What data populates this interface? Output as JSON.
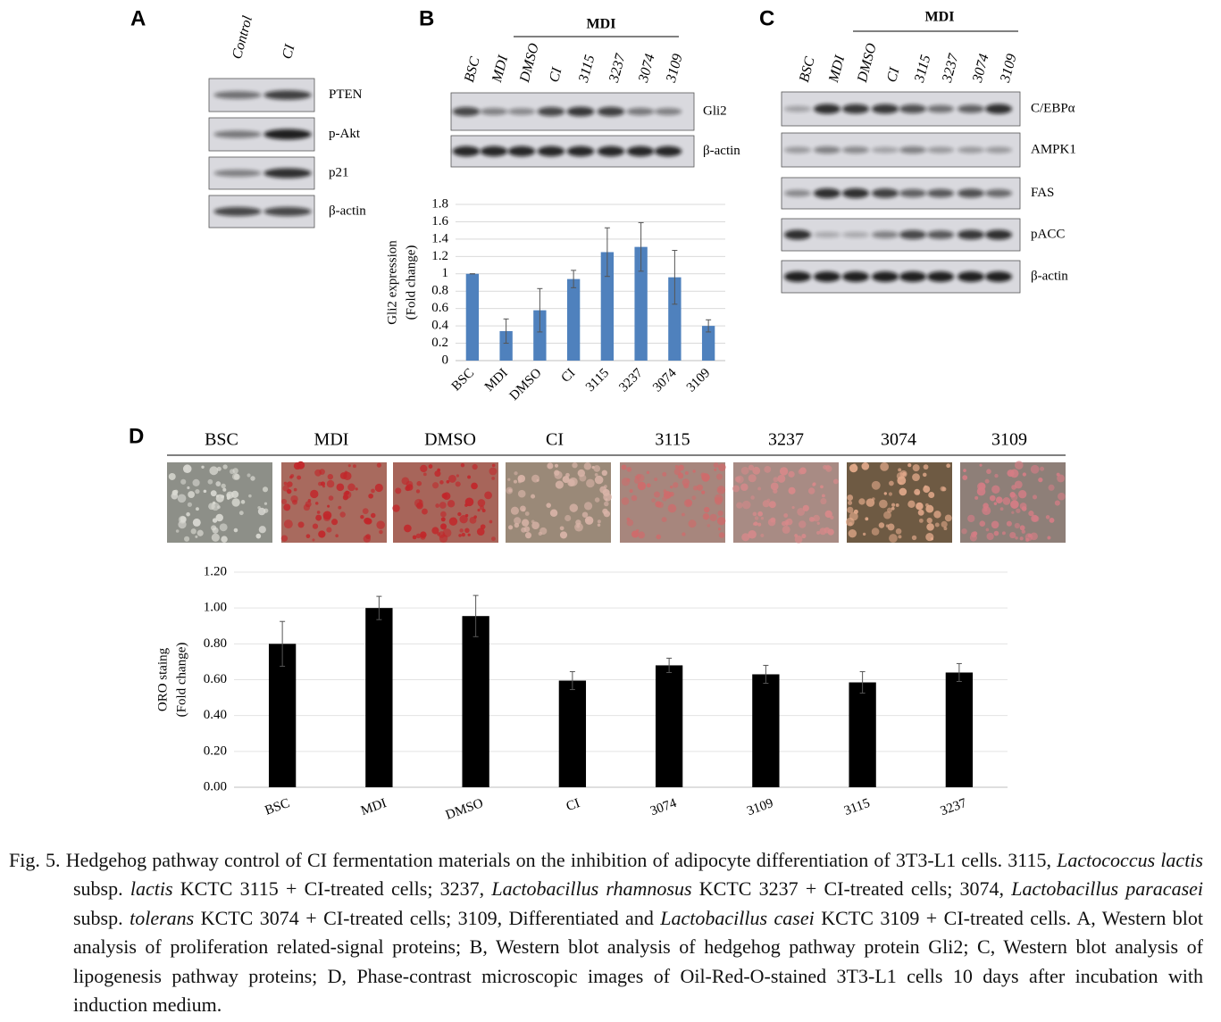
{
  "panel_a": {
    "label": "A",
    "columns": [
      "Control",
      "CI"
    ],
    "rows": [
      "PTEN",
      "p-Akt",
      "p21",
      "β-actin"
    ]
  },
  "panel_b": {
    "label": "B",
    "group": "MDI",
    "columns": [
      "BSC",
      "MDI",
      "DMSO",
      "CI",
      "3115",
      "3237",
      "3074",
      "3109"
    ],
    "rows": [
      "Gli2",
      "β-actin"
    ]
  },
  "panel_c": {
    "label": "C",
    "group": "MDI",
    "columns": [
      "BSC",
      "MDI",
      "DMSO",
      "CI",
      "3115",
      "3237",
      "3074",
      "3109"
    ],
    "rows": [
      "C/EBPα",
      "AMPK1",
      "FAS",
      "pACC",
      "β-actin"
    ]
  },
  "panel_d": {
    "label": "D",
    "columns": [
      "BSC",
      "MDI",
      "DMSO",
      "CI",
      "3115",
      "3237",
      "3074",
      "3109"
    ]
  },
  "chart_data": [
    {
      "type": "bar",
      "ylabel": [
        "Gli2  expression",
        "(Fold change)"
      ],
      "categories": [
        "BSC",
        "MDI",
        "DMSO",
        "CI",
        "3115",
        "3237",
        "3074",
        "3109"
      ],
      "values": [
        1,
        0.34,
        0.58,
        0.94,
        1.25,
        1.31,
        0.96,
        0.4
      ],
      "errors": [
        0,
        0.14,
        0.25,
        0.1,
        0.28,
        0.28,
        0.31,
        0.07
      ],
      "color": "#4f81bd",
      "ylim": [
        0,
        1.8
      ],
      "yticks": [
        0,
        0.2,
        0.4,
        0.6,
        0.8,
        1,
        1.2,
        1.4,
        1.6,
        1.8
      ],
      "grid": true
    },
    {
      "type": "bar",
      "ylabel": [
        "ORO staing",
        "(Fold change)"
      ],
      "categories": [
        "BSC",
        "MDI",
        "DMSO",
        "CI",
        "3074",
        "3109",
        "3115",
        "3237"
      ],
      "values": [
        0.8,
        1.0,
        0.955,
        0.595,
        0.68,
        0.63,
        0.585,
        0.64
      ],
      "errors": [
        0.125,
        0.065,
        0.115,
        0.05,
        0.04,
        0.05,
        0.06,
        0.05
      ],
      "color": "#000000",
      "ylim": [
        0,
        1.2
      ],
      "yticks": [
        {
          "value": 0,
          "label": "0.00"
        },
        {
          "value": 0.2,
          "label": "0.20"
        },
        {
          "value": 0.4,
          "label": "0.40"
        },
        {
          "value": 0.6,
          "label": "0.60"
        },
        {
          "value": 0.8,
          "label": "0.80"
        },
        {
          "value": 1.0,
          "label": "1.00"
        },
        {
          "value": 1.2,
          "label": "1.20"
        }
      ],
      "grid": true
    }
  ],
  "caption": [
    "Fig. 5. Hedgehog pathway control of CI fermentation materials on the inhibition of adipocyte differentiation of 3T3-L1 cells. 3115, ",
    {
      "text": "Lactococcus lactis",
      "italic": true
    },
    " subsp. ",
    {
      "text": "lactis",
      "italic": true
    },
    " KCTC 3115 + CI-treated cells; 3237, ",
    {
      "text": "Lactobacillus rhamnosus",
      "italic": true
    },
    " KCTC 3237 + CI-treated cells; 3074, ",
    {
      "text": "Lactobacillus paracasei",
      "italic": true
    },
    " subsp. ",
    {
      "text": "tolerans",
      "italic": true
    },
    " KCTC 3074 + CI-treated cells; 3109, Differentiated and ",
    {
      "text": "Lactobacillus casei",
      "italic": true
    },
    " KCTC 3109 + CI-treated cells. A, Western blot analysis of proliferation related-signal proteins; B, Western blot analysis of hedgehog pathway protein Gli2; C, Western blot analysis of lipogenesis pathway proteins; D, Phase-contrast microscopic images of Oil-Red-O-stained 3T3-L1 cells 10 days after incubation with induction medium."
  ]
}
